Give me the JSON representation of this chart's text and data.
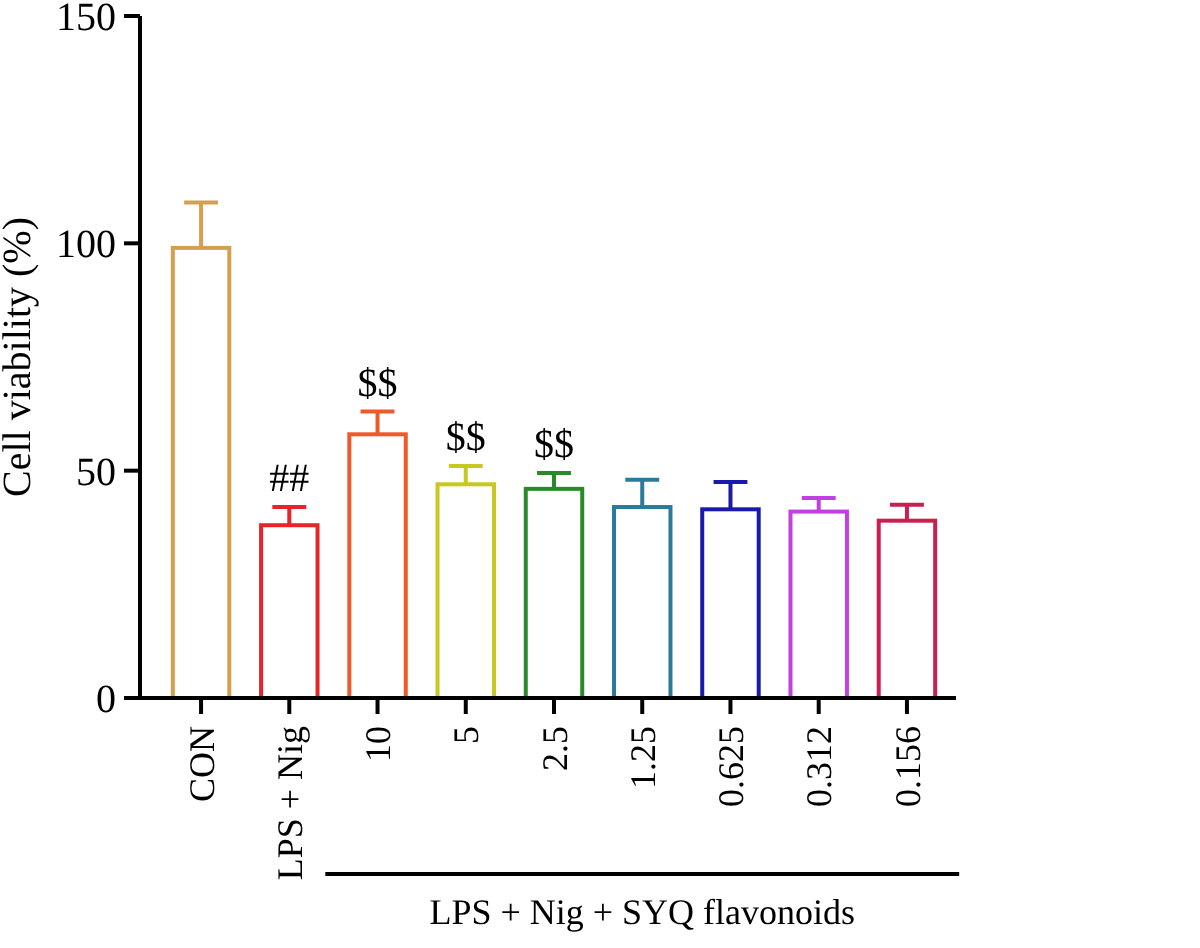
{
  "chart_data": {
    "type": "bar",
    "ylabel": "Cell viability (%)",
    "categories": [
      "CON",
      "LPS + Nig",
      "10",
      "5",
      "2.5",
      "1.25",
      "0.625",
      "0.312",
      "0.156"
    ],
    "values": [
      99,
      38,
      58,
      47,
      46,
      42,
      41.5,
      41,
      39
    ],
    "errors": [
      10,
      4,
      5,
      4,
      3.5,
      6,
      6,
      3,
      3.5
    ],
    "colors": [
      "#d4a050",
      "#e8232a",
      "#f05a28",
      "#c8c820",
      "#2a8a2a",
      "#2a7a9a",
      "#1a1aaa",
      "#c040e0",
      "#c82050"
    ],
    "ylim": [
      0,
      150
    ],
    "yticks": [
      0,
      50,
      100,
      150
    ],
    "annotations": [
      {
        "text": "##",
        "x": "LPS + Nig",
        "y": 42
      },
      {
        "text": "$$",
        "x": "10",
        "y": 63
      },
      {
        "text": "$$",
        "x": "5",
        "y": 51
      },
      {
        "text": "$$",
        "x": "2.5",
        "y": 49.5
      },
      "LPS + Nig + SYQ flavonoids"
    ]
  }
}
